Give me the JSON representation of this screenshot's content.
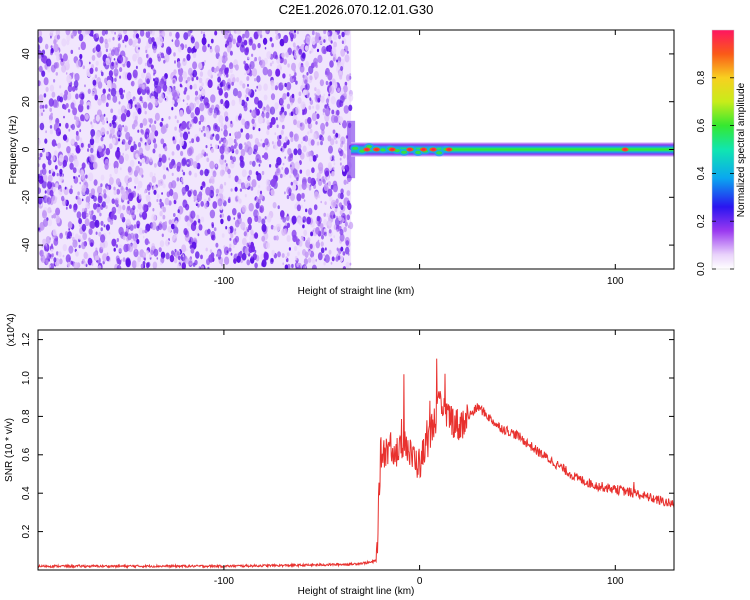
{
  "title": "C2E1.2026.070.12.01.G30",
  "chart_data": [
    {
      "type": "heatmap",
      "xlabel": "Height of straight line (km)",
      "ylabel": "Frequency (Hz)",
      "xlim": [
        -195,
        130
      ],
      "ylim": [
        -50,
        50
      ],
      "x_ticks": [
        -100,
        0,
        100
      ],
      "x_tick_labels": [
        "-100",
        "",
        "100"
      ],
      "y_ticks": [
        -40,
        -20,
        0,
        20,
        40
      ],
      "y_tick_labels": [
        "-40",
        "-20",
        "0",
        "20",
        "40"
      ],
      "colorbar": {
        "label": "Normalized spectral amplitude",
        "range": [
          0,
          1
        ],
        "ticks": [
          0.0,
          0.2,
          0.4,
          0.6,
          0.8
        ],
        "tick_labels": [
          "0.0",
          "0.2",
          "0.4",
          "0.6",
          "0.8"
        ]
      },
      "regions": [
        {
          "name": "noise",
          "x_range": [
            -195,
            -35
          ],
          "f_range": [
            -50,
            50
          ],
          "amplitude": 0.1
        },
        {
          "name": "signal",
          "x_range": [
            -35,
            130
          ],
          "f_center": 0,
          "f_halfwidth": 3,
          "amplitude": 0.45
        }
      ],
      "grid": false
    },
    {
      "type": "line",
      "xlabel": "Height of straight line (km)",
      "ylabel": "SNR (10 * v/v)",
      "y_multiplier": "(x10^4)",
      "xlim": [
        -195,
        130
      ],
      "ylim": [
        0,
        1.25
      ],
      "x_ticks": [
        -100,
        0,
        100
      ],
      "x_tick_labels": [
        "-100",
        "0",
        "100"
      ],
      "y_ticks": [
        0.2,
        0.4,
        0.6,
        0.8,
        1.0,
        1.2
      ],
      "y_tick_labels": [
        "0.2",
        "0.4",
        "0.6",
        "0.8",
        "1.0",
        "1.2"
      ],
      "series": [
        {
          "color": "#e8312e",
          "x": [
            -195,
            -150,
            -100,
            -60,
            -35,
            -25,
            -22,
            -21,
            -20,
            -15,
            -10,
            -8,
            -5,
            0,
            5,
            10,
            15,
            20,
            25,
            30,
            40,
            50,
            60,
            70,
            80,
            90,
            100,
            110,
            120,
            130
          ],
          "y": [
            0.02,
            0.02,
            0.02,
            0.025,
            0.03,
            0.04,
            0.05,
            0.3,
            0.6,
            0.65,
            0.6,
            0.7,
            0.6,
            0.55,
            0.7,
            0.85,
            0.8,
            0.75,
            0.8,
            0.85,
            0.75,
            0.7,
            0.62,
            0.55,
            0.48,
            0.44,
            0.42,
            0.4,
            0.37,
            0.34
          ]
        }
      ],
      "grid": false
    }
  ]
}
